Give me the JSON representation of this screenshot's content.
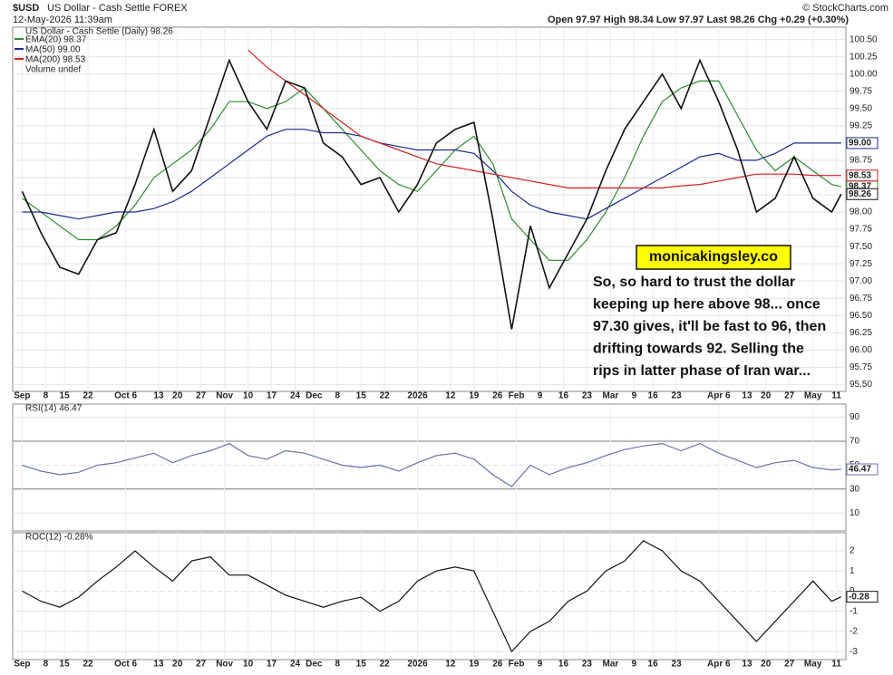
{
  "header": {
    "symbol": "$USD",
    "name": "US Dollar - Cash Settle FOREX",
    "datetime": "12-May-2026 11:39am",
    "source": "© StockCharts.com",
    "quote": "Open 97.97  High 98.34  Low 97.97  Last 98.26  Chg +0.29 (+0.30%)"
  },
  "chart_data": [
    {
      "type": "line",
      "title": "US Dollar - Cash Settle (Daily) 98.26",
      "x": [
        0,
        4,
        8,
        12,
        16,
        20,
        24,
        28,
        32,
        36,
        40,
        44,
        48,
        52,
        56,
        60,
        64,
        68,
        72,
        76,
        80,
        84,
        88,
        92,
        96,
        100,
        104,
        108,
        112,
        116,
        120,
        124,
        128,
        132,
        136,
        140,
        144,
        148,
        152,
        156,
        160,
        164,
        168,
        172,
        174
      ],
      "series": [
        {
          "name": "EMA(20) 98.37",
          "color": "#2e8b2e",
          "tag": "98.37",
          "values": [
            98.2,
            98.0,
            97.8,
            97.6,
            97.6,
            97.8,
            98.1,
            98.5,
            98.7,
            98.9,
            99.2,
            99.6,
            99.6,
            99.5,
            99.6,
            99.8,
            99.5,
            99.2,
            98.9,
            98.6,
            98.4,
            98.3,
            98.6,
            98.9,
            99.1,
            98.7,
            97.9,
            97.6,
            97.3,
            97.3,
            97.6,
            98.0,
            98.5,
            99.1,
            99.6,
            99.8,
            99.9,
            99.9,
            99.4,
            98.9,
            98.6,
            98.8,
            98.6,
            98.4,
            98.37
          ]
        },
        {
          "name": "MA(50) 99.00",
          "color": "#1c2a8c",
          "tag": "99.00",
          "values": [
            98.0,
            98.0,
            97.95,
            97.9,
            97.95,
            98.0,
            98.0,
            98.05,
            98.15,
            98.3,
            98.5,
            98.7,
            98.9,
            99.1,
            99.2,
            99.2,
            99.15,
            99.15,
            99.1,
            99.0,
            98.95,
            98.9,
            98.9,
            98.9,
            98.85,
            98.6,
            98.3,
            98.1,
            98.0,
            97.95,
            97.9,
            98.05,
            98.2,
            98.35,
            98.5,
            98.65,
            98.8,
            98.85,
            98.75,
            98.75,
            98.85,
            99.0,
            99.0,
            99.0,
            99.0
          ]
        },
        {
          "name": "MA(200) 98.53",
          "color": "#d02020",
          "tag": "98.53",
          "values": [
            null,
            null,
            null,
            null,
            null,
            null,
            null,
            null,
            null,
            null,
            null,
            null,
            100.35,
            100.1,
            99.9,
            99.7,
            99.5,
            99.3,
            99.1,
            99.0,
            98.9,
            98.8,
            98.7,
            98.65,
            98.6,
            98.55,
            98.5,
            98.45,
            98.4,
            98.35,
            98.35,
            98.35,
            98.35,
            98.35,
            98.35,
            98.38,
            98.4,
            98.45,
            98.5,
            98.55,
            98.55,
            98.55,
            98.53,
            98.53,
            98.53
          ]
        },
        {
          "name": "US Dollar",
          "color": "#111111",
          "tag": "98.26",
          "values": [
            98.3,
            97.7,
            97.2,
            97.1,
            97.6,
            97.7,
            98.4,
            99.2,
            98.3,
            98.6,
            99.4,
            100.2,
            99.6,
            99.2,
            99.9,
            99.8,
            99.0,
            98.8,
            98.4,
            98.5,
            98.0,
            98.4,
            99.0,
            99.2,
            99.3,
            97.9,
            96.3,
            97.8,
            96.9,
            97.4,
            97.9,
            98.6,
            99.2,
            99.6,
            100.0,
            99.5,
            100.2,
            99.6,
            98.9,
            98.0,
            98.2,
            98.8,
            98.2,
            98.0,
            98.26
          ]
        }
      ],
      "legend_extra": "Volume undef",
      "xlim": [
        -2,
        175
      ],
      "ylim": [
        95.4,
        100.68
      ],
      "yticks": [
        {
          "value": 95.5,
          "label": "95.50"
        },
        {
          "value": 95.75,
          "label": "95.75"
        },
        {
          "value": 96,
          "label": "96.00"
        },
        {
          "value": 96.25,
          "label": "96.25"
        },
        {
          "value": 96.5,
          "label": "96.50"
        },
        {
          "value": 96.75,
          "label": "96.75"
        },
        {
          "value": 97,
          "label": "97.00"
        },
        {
          "value": 97.25,
          "label": "97.25"
        },
        {
          "value": 97.5,
          "label": "97.50"
        },
        {
          "value": 97.75,
          "label": "97.75"
        },
        {
          "value": 98,
          "label": "98.00"
        },
        {
          "value": 98.25,
          "label": "98.25"
        },
        {
          "value": 98.5,
          "label": "98.50"
        },
        {
          "value": 98.75,
          "label": "98.75"
        },
        {
          "value": 99,
          "label": "99.00"
        },
        {
          "value": 99.25,
          "label": "99.25"
        },
        {
          "value": 99.5,
          "label": "99.50"
        },
        {
          "value": 99.75,
          "label": "99.75"
        },
        {
          "value": 100,
          "label": "100.00"
        },
        {
          "value": 100.25,
          "label": "100.25"
        },
        {
          "value": 100.5,
          "label": "100.50"
        }
      ],
      "xticks": [
        {
          "value": 0,
          "label": "Sep"
        },
        {
          "value": 5,
          "label": "8"
        },
        {
          "value": 9,
          "label": "15"
        },
        {
          "value": 14,
          "label": "22"
        },
        {
          "value": 22,
          "label": "Oct 6"
        },
        {
          "value": 29,
          "label": "13"
        },
        {
          "value": 33,
          "label": "20"
        },
        {
          "value": 38,
          "label": "27"
        },
        {
          "value": 43,
          "label": "Nov"
        },
        {
          "value": 48,
          "label": "10"
        },
        {
          "value": 53,
          "label": "17"
        },
        {
          "value": 58,
          "label": "24"
        },
        {
          "value": 62,
          "label": "Dec"
        },
        {
          "value": 67,
          "label": "8"
        },
        {
          "value": 72,
          "label": "15"
        },
        {
          "value": 77,
          "label": "22"
        },
        {
          "value": 84,
          "label": "2026"
        },
        {
          "value": 91,
          "label": "12"
        },
        {
          "value": 96,
          "label": "19"
        },
        {
          "value": 101,
          "label": "26"
        },
        {
          "value": 105,
          "label": "Feb"
        },
        {
          "value": 110,
          "label": "9"
        },
        {
          "value": 115,
          "label": "16"
        },
        {
          "value": 120,
          "label": "23"
        },
        {
          "value": 125,
          "label": "Mar"
        },
        {
          "value": 130,
          "label": "9"
        },
        {
          "value": 134,
          "label": "16"
        },
        {
          "value": 139,
          "label": "23"
        },
        {
          "value": 148,
          "label": "Apr 6"
        },
        {
          "value": 154,
          "label": "13"
        },
        {
          "value": 158,
          "label": "20"
        },
        {
          "value": 163,
          "label": "27"
        },
        {
          "value": 168,
          "label": "May"
        },
        {
          "value": 173,
          "label": "11"
        }
      ],
      "grid": true,
      "annotation": {
        "box": "monicakingsley.co",
        "lines": [
          "So, so hard to trust the dollar",
          "keeping up here above 98... once",
          "97.30 gives, it'll be fast to 96, then",
          "drifting towards 92. Selling the",
          "rips in latter phase of Iran war..."
        ]
      }
    },
    {
      "type": "line",
      "title": "RSI(14) 46.47",
      "x": [
        0,
        4,
        8,
        12,
        16,
        20,
        24,
        28,
        32,
        36,
        40,
        44,
        48,
        52,
        56,
        60,
        64,
        68,
        72,
        76,
        80,
        84,
        88,
        92,
        96,
        100,
        104,
        108,
        112,
        116,
        120,
        124,
        128,
        132,
        136,
        140,
        144,
        148,
        152,
        156,
        160,
        164,
        168,
        172,
        174
      ],
      "series": [
        {
          "name": "RSI(14)",
          "color": "#6a72a8",
          "tag": "46.47",
          "values": [
            50,
            45,
            42,
            44,
            50,
            52,
            56,
            60,
            52,
            58,
            62,
            68,
            58,
            55,
            62,
            60,
            55,
            50,
            48,
            50,
            45,
            52,
            58,
            60,
            55,
            42,
            32,
            50,
            42,
            48,
            52,
            58,
            63,
            66,
            68,
            62,
            68,
            60,
            54,
            48,
            52,
            54,
            48,
            46,
            46.47
          ]
        }
      ],
      "xlim": [
        -2,
        175
      ],
      "ylim": [
        -5,
        101
      ],
      "yticks": [
        10,
        30,
        50,
        70,
        90
      ],
      "xticks": [
        0,
        22,
        43,
        62,
        84,
        105,
        125,
        148,
        168
      ],
      "grid": true
    },
    {
      "type": "line",
      "title": "ROC(12) -0.28%",
      "x": [
        0,
        4,
        8,
        12,
        16,
        20,
        24,
        28,
        32,
        36,
        40,
        44,
        48,
        52,
        56,
        60,
        64,
        68,
        72,
        76,
        80,
        84,
        88,
        92,
        96,
        100,
        104,
        108,
        112,
        116,
        120,
        124,
        128,
        132,
        136,
        140,
        144,
        148,
        152,
        156,
        160,
        164,
        168,
        172,
        174
      ],
      "series": [
        {
          "name": "ROC(12)",
          "color": "#111111",
          "tag": "-0.28",
          "values": [
            0,
            -0.5,
            -0.8,
            -0.3,
            0.5,
            1.2,
            2.0,
            1.2,
            0.5,
            1.5,
            1.7,
            0.8,
            0.8,
            0.3,
            -0.2,
            -0.5,
            -0.8,
            -0.5,
            -0.3,
            -1.0,
            -0.5,
            0.5,
            1.0,
            1.2,
            1.0,
            -1.0,
            -3.0,
            -2.0,
            -1.5,
            -0.5,
            0,
            1.0,
            1.5,
            2.5,
            2.0,
            1.0,
            0.5,
            -0.5,
            -1.5,
            -2.5,
            -1.5,
            -0.5,
            0.5,
            -0.5,
            -0.28
          ]
        }
      ],
      "xlim": [
        -2,
        175
      ],
      "ylim": [
        -3.4,
        2.9
      ],
      "yticks": [
        -3,
        -2,
        -1,
        0,
        1,
        2
      ],
      "xticks": [
        {
          "value": 0,
          "label": "Sep"
        },
        {
          "value": 5,
          "label": "8"
        },
        {
          "value": 9,
          "label": "15"
        },
        {
          "value": 14,
          "label": "22"
        },
        {
          "value": 22,
          "label": "Oct 6"
        },
        {
          "value": 29,
          "label": "13"
        },
        {
          "value": 33,
          "label": "20"
        },
        {
          "value": 38,
          "label": "27"
        },
        {
          "value": 43,
          "label": "Nov"
        },
        {
          "value": 48,
          "label": "10"
        },
        {
          "value": 53,
          "label": "17"
        },
        {
          "value": 58,
          "label": "24"
        },
        {
          "value": 62,
          "label": "Dec"
        },
        {
          "value": 67,
          "label": "8"
        },
        {
          "value": 72,
          "label": "15"
        },
        {
          "value": 77,
          "label": "22"
        },
        {
          "value": 84,
          "label": "2026"
        },
        {
          "value": 91,
          "label": "12"
        },
        {
          "value": 96,
          "label": "19"
        },
        {
          "value": 101,
          "label": "26"
        },
        {
          "value": 105,
          "label": "Feb"
        },
        {
          "value": 110,
          "label": "9"
        },
        {
          "value": 115,
          "label": "16"
        },
        {
          "value": 120,
          "label": "23"
        },
        {
          "value": 125,
          "label": "Mar"
        },
        {
          "value": 130,
          "label": "9"
        },
        {
          "value": 134,
          "label": "16"
        },
        {
          "value": 139,
          "label": "23"
        },
        {
          "value": 148,
          "label": "Apr 6"
        },
        {
          "value": 154,
          "label": "13"
        },
        {
          "value": 158,
          "label": "20"
        },
        {
          "value": 163,
          "label": "27"
        },
        {
          "value": 168,
          "label": "May"
        },
        {
          "value": 173,
          "label": "11"
        }
      ],
      "grid": true
    }
  ]
}
